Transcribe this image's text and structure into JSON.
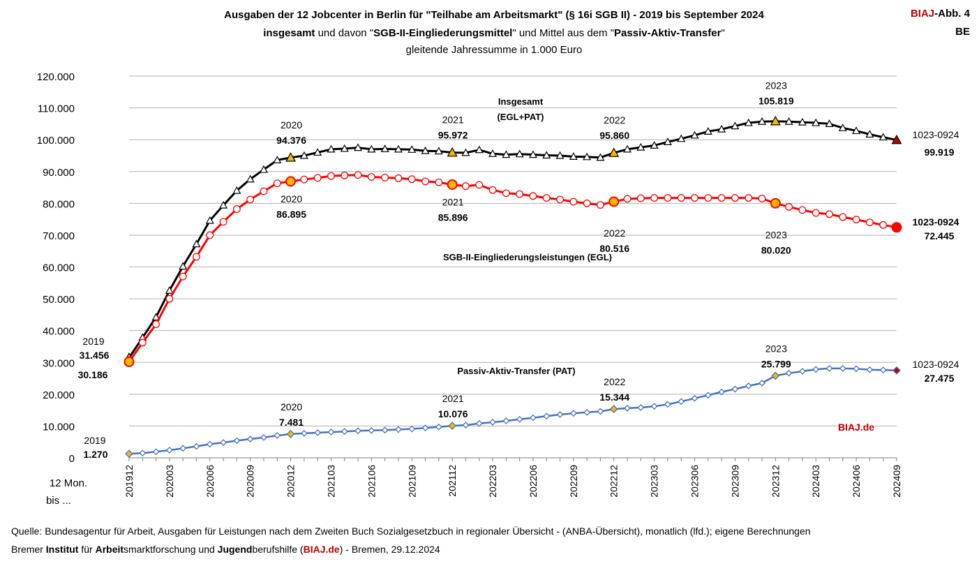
{
  "header": {
    "title_line1": "Ausgaben der 12 Jobcenter in Berlin für \"Teilhabe am Arbeitsmarkt\" (§ 16i SGB II) - 2019 bis September 2024",
    "title_line2": {
      "a": "insgesamt",
      "b": " und davon \"",
      "c": "SGB-II-Eingliederungsmittel",
      "d": "\" und Mittel aus dem \"",
      "e": "Passiv-Aktiv-Transfer",
      "f": "\""
    },
    "subtitle": "gleitende  Jahressumme in 1.000 Euro",
    "badge_brand": "BIAJ",
    "badge_rest": "-Abb. 4",
    "badge_region": "BE"
  },
  "footer": {
    "source": "Quelle: Bundesagentur für Arbeit, Ausgaben für Leistungen nach dem Zweiten Buch Sozialgesetzbuch in regionaler Übersicht - (ANBA-Übersicht), monatlich (lfd.); eigene Berechnungen",
    "institute": {
      "p1": "Bremer ",
      "p2": "Institut",
      "p3": " für ",
      "p4": "Arbeit",
      "p5": "smarktforschung und ",
      "p6": "Jugend",
      "p7": "berufshilfe (",
      "p8": "BIAJ.de",
      "p9": ") - Bremen, 29.12.2024"
    }
  },
  "watermark": "BIAJ.de",
  "chart_data": {
    "type": "line",
    "x_axis_caption": [
      "12 Mon.",
      "bis ..."
    ],
    "x": [
      "201912",
      "202001",
      "202002",
      "202003",
      "202004",
      "202005",
      "202006",
      "202007",
      "202008",
      "202009",
      "202010",
      "202011",
      "202012",
      "202101",
      "202102",
      "202103",
      "202104",
      "202105",
      "202106",
      "202107",
      "202108",
      "202109",
      "202110",
      "202111",
      "202112",
      "202201",
      "202202",
      "202203",
      "202204",
      "202205",
      "202206",
      "202207",
      "202208",
      "202209",
      "202210",
      "202211",
      "202212",
      "202301",
      "202302",
      "202303",
      "202304",
      "202305",
      "202306",
      "202307",
      "202308",
      "202309",
      "202310",
      "202311",
      "202312",
      "202401",
      "202402",
      "202403",
      "202404",
      "202405",
      "202406",
      "202407",
      "202408",
      "202409"
    ],
    "x_tick_labels": [
      "201912",
      "202003",
      "202006",
      "202009",
      "202012",
      "202103",
      "202106",
      "202109",
      "202112",
      "202203",
      "202206",
      "202209",
      "202212",
      "202303",
      "202306",
      "202309",
      "202312",
      "202403",
      "202406",
      "202409"
    ],
    "y_ticks": [
      "0",
      "10.000",
      "20.000",
      "30.000",
      "40.000",
      "50.000",
      "60.000",
      "70.000",
      "80.000",
      "90.000",
      "100.000",
      "110.000",
      "120.000"
    ],
    "ylim": [
      0,
      120000
    ],
    "grid": true,
    "series": [
      {
        "name": "Insgesamt (EGL+PAT)",
        "label_lines": [
          "Insgesamt",
          "(EGL+PAT)"
        ],
        "color": "#000000",
        "marker": "triangle",
        "highlight_color": "#f5b800",
        "values": [
          31456,
          37800,
          44200,
          52600,
          60200,
          67200,
          74600,
          79400,
          84000,
          87600,
          90600,
          93600,
          94376,
          95000,
          96000,
          97000,
          97200,
          97500,
          97000,
          97100,
          97000,
          96900,
          96500,
          96400,
          95972,
          95900,
          96800,
          95600,
          95300,
          95500,
          95300,
          95100,
          95000,
          94700,
          94600,
          94400,
          95860,
          97000,
          97600,
          98200,
          99300,
          100300,
          101400,
          102600,
          103300,
          104300,
          105300,
          105700,
          105819,
          105700,
          105500,
          105300,
          105000,
          103700,
          102800,
          101700,
          100800,
          99919
        ]
      },
      {
        "name": "SGB-II-Eingliederungsleistungen (EGL)",
        "label_lines": [
          "SGB-II-Eingliederungsleistungen (EGL)"
        ],
        "color": "#ff0000",
        "marker": "circle",
        "highlight_color": "#f5b800",
        "values": [
          30186,
          36200,
          42000,
          50000,
          57000,
          63200,
          70000,
          74200,
          78200,
          81200,
          83800,
          86300,
          86895,
          87500,
          88000,
          88600,
          88800,
          88900,
          88300,
          88100,
          87900,
          87600,
          86900,
          86600,
          85896,
          85400,
          85800,
          84200,
          83200,
          82900,
          82300,
          81700,
          81200,
          80500,
          80000,
          79500,
          80516,
          81400,
          81600,
          81700,
          81700,
          81700,
          81700,
          81700,
          81700,
          81700,
          81700,
          81500,
          80020,
          78900,
          77900,
          77000,
          76600,
          75700,
          74900,
          74000,
          73200,
          72445
        ]
      },
      {
        "name": "Passiv-Aktiv-Transfer (PAT)",
        "label_lines": [
          "Passiv-Aktiv-Transfer (PAT)"
        ],
        "color": "#4472c4",
        "marker": "diamond",
        "highlight_color": "#f5b800",
        "values": [
          1270,
          1500,
          1900,
          2400,
          3000,
          3600,
          4300,
          4800,
          5400,
          5900,
          6400,
          7000,
          7481,
          7700,
          7900,
          8100,
          8300,
          8500,
          8600,
          8700,
          8900,
          9100,
          9400,
          9700,
          10076,
          10300,
          10800,
          11200,
          11600,
          12100,
          12600,
          13100,
          13600,
          14000,
          14300,
          14600,
          15344,
          15600,
          15800,
          16200,
          16800,
          17700,
          18700,
          19700,
          20700,
          21600,
          22600,
          23500,
          25799,
          26600,
          27200,
          27800,
          28100,
          28100,
          28000,
          27700,
          27600,
          27475
        ]
      }
    ],
    "highlights": [
      0,
      12,
      24,
      36,
      48,
      57
    ],
    "annotations": {
      "total": [
        {
          "idx": 12,
          "year": "2020",
          "value": "94.376"
        },
        {
          "idx": 24,
          "year": "2021",
          "value": "95.972"
        },
        {
          "idx": 36,
          "year": "2022",
          "value": "95.860"
        },
        {
          "idx": 48,
          "year": "2023",
          "value": "105.819"
        },
        {
          "idx": 57,
          "year": "1023-0924",
          "value": "99.919"
        }
      ],
      "egl": [
        {
          "idx": 12,
          "year": "2020",
          "value": "86.895"
        },
        {
          "idx": 24,
          "year": "2021",
          "value": "85.896"
        },
        {
          "idx": 36,
          "year": "2022",
          "value": "80.516"
        },
        {
          "idx": 48,
          "year": "2023",
          "value": "80.020"
        },
        {
          "idx": 57,
          "year": "1023-0924",
          "value": "72.445"
        }
      ],
      "pat": [
        {
          "idx": 0,
          "year": "2019",
          "value": "1.270"
        },
        {
          "idx": 12,
          "year": "2020",
          "value": "7.481"
        },
        {
          "idx": 24,
          "year": "2021",
          "value": "10.076"
        },
        {
          "idx": 36,
          "year": "2022",
          "value": "15.344"
        },
        {
          "idx": 48,
          "year": "2023",
          "value": "25.799"
        },
        {
          "idx": 57,
          "year": "1023-0924",
          "value": "27.475"
        }
      ],
      "start": {
        "year": "2019",
        "total": "31.456",
        "egl": "30.186"
      }
    }
  }
}
